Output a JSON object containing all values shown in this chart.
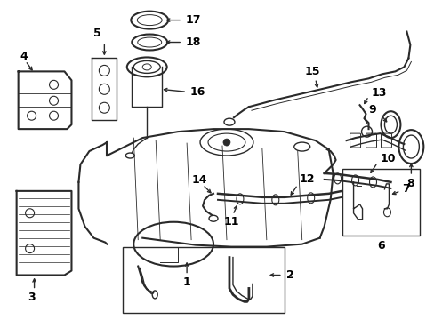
{
  "bg_color": "#ffffff",
  "lc": "#2a2a2a",
  "lw": 1.0,
  "figsize": [
    4.89,
    3.6
  ],
  "dpi": 100
}
